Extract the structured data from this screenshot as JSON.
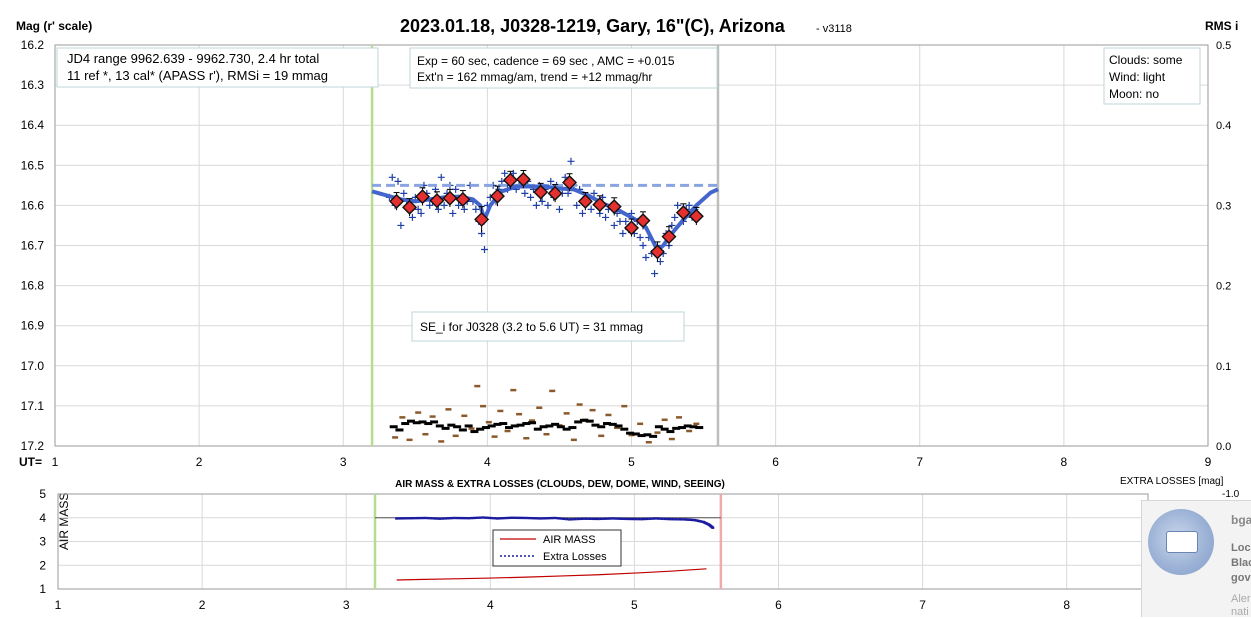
{
  "chart_data": [
    {
      "type": "scatter",
      "title": "2023.01.18, J0328-1219, Gary, 16\"(C), Arizona",
      "version": "- v3118",
      "ylabel_left": "Mag (r' scale)",
      "ylabel_right": "RMS i",
      "xaxis_label": "UT=",
      "xlim": [
        1,
        9
      ],
      "ylim": [
        16.2,
        17.2
      ],
      "ylim_right": [
        0.0,
        0.5
      ],
      "y_inverted": true,
      "grid": true,
      "x_ticks": [
        "1",
        "2",
        "3",
        "4",
        "5",
        "6",
        "7",
        "8",
        "9"
      ],
      "y_ticks": [
        "16.2",
        "16.3",
        "16.4",
        "16.5",
        "16.6",
        "16.7",
        "16.8",
        "16.9",
        "17.0",
        "17.1",
        "17.2"
      ],
      "y_ticks_right": [
        "0.5",
        "0.4",
        "0.3",
        "0.2",
        "0.1",
        "0.0"
      ],
      "markers": {
        "green_line": 3.2,
        "gray_line": 5.6
      },
      "annotations": {
        "jd_box": [
          "JD4 range 9962.639 - 9962.730, 2.4 hr total",
          "11 ref *, 13 cal*  (APASS r'), RMSi = 19 mmag"
        ],
        "exp_box": [
          "Exp = 60 sec, cadence = 69 sec , AMC = +0.015",
          "Ext'n = 162 mmag/am, trend = +12 mmag/hr"
        ],
        "weather_box": [
          "Clouds: some",
          "Wind:  light",
          "Moon: no"
        ],
        "se_box": "SE_i for J0328 (3.2 to 5.6 UT) = 31 mmag"
      },
      "series": [
        {
          "kind": "binned",
          "x": [
            3.37,
            3.46,
            3.55,
            3.65,
            3.74,
            3.83,
            3.96,
            4.07,
            4.16,
            4.25,
            4.37,
            4.47,
            4.57,
            4.68,
            4.78,
            4.88,
            5.0,
            5.08,
            5.18,
            5.26,
            5.36,
            5.45
          ],
          "y": [
            16.59,
            16.605,
            16.578,
            16.588,
            16.582,
            16.585,
            16.635,
            16.577,
            16.537,
            16.535,
            16.567,
            16.57,
            16.543,
            16.59,
            16.598,
            16.603,
            16.656,
            16.638,
            16.716,
            16.678,
            16.618,
            16.627
          ],
          "err": [
            0.012,
            0.012,
            0.012,
            0.012,
            0.012,
            0.012,
            0.022,
            0.015,
            0.012,
            0.012,
            0.012,
            0.012,
            0.012,
            0.012,
            0.012,
            0.012,
            0.012,
            0.012,
            0.015,
            0.015,
            0.012,
            0.012
          ],
          "color": "#e53030"
        },
        {
          "kind": "raw",
          "x": [
            3.32,
            3.34,
            3.36,
            3.38,
            3.4,
            3.42,
            3.44,
            3.46,
            3.48,
            3.5,
            3.52,
            3.54,
            3.56,
            3.58,
            3.6,
            3.62,
            3.64,
            3.66,
            3.68,
            3.7,
            3.72,
            3.74,
            3.76,
            3.78,
            3.8,
            3.82,
            3.84,
            3.86,
            3.88,
            3.9,
            3.92,
            3.94,
            3.96,
            3.98,
            4.0,
            4.02,
            4.04,
            4.06,
            4.08,
            4.1,
            4.12,
            4.14,
            4.16,
            4.18,
            4.2,
            4.22,
            4.24,
            4.26,
            4.28,
            4.3,
            4.32,
            4.34,
            4.36,
            4.38,
            4.4,
            4.42,
            4.44,
            4.46,
            4.48,
            4.5,
            4.52,
            4.54,
            4.56,
            4.58,
            4.6,
            4.62,
            4.64,
            4.66,
            4.68,
            4.7,
            4.72,
            4.74,
            4.76,
            4.78,
            4.8,
            4.82,
            4.84,
            4.86,
            4.88,
            4.9,
            4.92,
            4.94,
            4.96,
            4.98,
            5.0,
            5.02,
            5.04,
            5.06,
            5.08,
            5.1,
            5.12,
            5.14,
            5.16,
            5.18,
            5.2,
            5.22,
            5.24,
            5.26,
            5.28,
            5.3,
            5.32,
            5.34,
            5.36,
            5.38,
            5.4,
            5.42,
            5.44,
            5.46
          ],
          "y": [
            16.58,
            16.53,
            16.6,
            16.54,
            16.65,
            16.57,
            16.59,
            16.61,
            16.63,
            16.58,
            16.61,
            16.62,
            16.55,
            16.57,
            16.6,
            16.59,
            16.56,
            16.61,
            16.53,
            16.6,
            16.57,
            16.55,
            16.62,
            16.56,
            16.6,
            16.58,
            16.61,
            16.59,
            16.55,
            16.59,
            16.61,
            16.64,
            16.67,
            16.71,
            16.6,
            16.58,
            16.55,
            16.59,
            16.56,
            16.54,
            16.52,
            16.56,
            16.55,
            16.52,
            16.56,
            16.55,
            16.53,
            16.57,
            16.54,
            16.58,
            16.56,
            16.6,
            16.55,
            16.59,
            16.56,
            16.6,
            16.54,
            16.58,
            16.55,
            16.61,
            16.57,
            16.53,
            16.57,
            16.49,
            16.55,
            16.6,
            16.56,
            16.62,
            16.58,
            16.59,
            16.61,
            16.57,
            16.6,
            16.62,
            16.58,
            16.63,
            16.61,
            16.6,
            16.65,
            16.62,
            16.64,
            16.67,
            16.64,
            16.66,
            16.62,
            16.67,
            16.64,
            16.68,
            16.7,
            16.73,
            16.68,
            16.72,
            16.77,
            16.7,
            16.74,
            16.72,
            16.67,
            16.7,
            16.65,
            16.63,
            16.6,
            16.62,
            16.64,
            16.61,
            16.6,
            16.63,
            16.61,
            16.63
          ],
          "color": "#1f3fa8"
        },
        {
          "kind": "fit",
          "x": [
            3.2,
            3.3,
            3.4,
            3.5,
            3.6,
            3.7,
            3.8,
            3.9,
            3.95,
            3.98,
            4.02,
            4.1,
            4.2,
            4.3,
            4.4,
            4.5,
            4.6,
            4.7,
            4.8,
            4.9,
            5.0,
            5.05,
            5.1,
            5.15,
            5.18,
            5.22,
            5.28,
            5.35,
            5.45,
            5.55,
            5.6
          ],
          "y": [
            16.565,
            16.575,
            16.585,
            16.59,
            16.585,
            16.58,
            16.578,
            16.585,
            16.6,
            16.635,
            16.6,
            16.565,
            16.553,
            16.553,
            16.553,
            16.558,
            16.56,
            16.575,
            16.595,
            16.61,
            16.63,
            16.64,
            16.655,
            16.69,
            16.712,
            16.7,
            16.67,
            16.64,
            16.6,
            16.568,
            16.56
          ],
          "color": "#4466cc"
        },
        {
          "kind": "dashed",
          "x": [
            3.2,
            5.6
          ],
          "y": [
            16.55,
            16.55
          ],
          "color": "#8aa4e0"
        },
        {
          "kind": "rms_black",
          "x": [
            3.35,
            3.39,
            3.43,
            3.47,
            3.51,
            3.55,
            3.59,
            3.63,
            3.67,
            3.71,
            3.75,
            3.79,
            3.83,
            3.87,
            3.91,
            3.95,
            3.99,
            4.03,
            4.07,
            4.11,
            4.15,
            4.19,
            4.23,
            4.27,
            4.31,
            4.35,
            4.39,
            4.43,
            4.47,
            4.51,
            4.55,
            4.59,
            4.63,
            4.67,
            4.71,
            4.75,
            4.79,
            4.83,
            4.87,
            4.91,
            4.95,
            4.99,
            5.03,
            5.07,
            5.11,
            5.15,
            5.19,
            5.23,
            5.27,
            5.31,
            5.35,
            5.39,
            5.43,
            5.47
          ],
          "y": [
            0.024,
            0.02,
            0.028,
            0.031,
            0.029,
            0.03,
            0.028,
            0.03,
            0.025,
            0.022,
            0.026,
            0.024,
            0.02,
            0.025,
            0.018,
            0.021,
            0.023,
            0.025,
            0.027,
            0.028,
            0.023,
            0.025,
            0.026,
            0.028,
            0.029,
            0.021,
            0.024,
            0.025,
            0.027,
            0.024,
            0.021,
            0.023,
            0.03,
            0.032,
            0.031,
            0.026,
            0.024,
            0.028,
            0.027,
            0.025,
            0.021,
            0.016,
            0.015,
            0.013,
            0.014,
            0.012,
            0.024,
            0.021,
            0.018,
            0.022,
            0.023,
            0.025,
            0.024,
            0.023
          ],
          "color": "#000000"
        },
        {
          "kind": "rms_brown",
          "x": [
            3.36,
            3.41,
            3.46,
            3.52,
            3.57,
            3.62,
            3.68,
            3.73,
            3.78,
            3.84,
            3.89,
            3.93,
            3.97,
            4.01,
            4.05,
            4.09,
            4.14,
            4.18,
            4.22,
            4.27,
            4.31,
            4.36,
            4.41,
            4.45,
            4.5,
            4.55,
            4.6,
            4.64,
            4.68,
            4.73,
            4.79,
            4.84,
            4.9,
            4.95,
            5.0,
            5.06,
            5.12,
            5.18,
            5.23,
            5.28,
            5.33,
            5.4,
            5.45
          ],
          "y": [
            0.011,
            0.036,
            0.008,
            0.042,
            0.015,
            0.037,
            0.006,
            0.046,
            0.013,
            0.038,
            0.022,
            0.075,
            0.05,
            0.03,
            0.012,
            0.044,
            0.019,
            0.07,
            0.04,
            0.01,
            0.032,
            0.048,
            0.015,
            0.069,
            0.026,
            0.041,
            0.008,
            0.052,
            0.033,
            0.045,
            0.013,
            0.039,
            0.023,
            0.05,
            0.014,
            0.028,
            0.005,
            0.017,
            0.033,
            0.009,
            0.036,
            0.019,
            0.028
          ],
          "color": "#8b5a2b"
        }
      ]
    },
    {
      "type": "line",
      "title": "AIR MASS & EXTRA LOSSES (CLOUDS, DEW, DOME, WIND, SEEING)",
      "ylabel": "AIR MASS",
      "ylabel_right": "EXTRA LOSSES [mag]",
      "right_top_tick": "-1.0",
      "xlim": [
        1,
        9
      ],
      "ylim": [
        1,
        5
      ],
      "y_ticks": [
        "1",
        "2",
        "3",
        "4",
        "5"
      ],
      "x_ticks": [
        "1",
        "2",
        "3",
        "4",
        "5",
        "6",
        "7",
        "8"
      ],
      "legend": [
        "AIR MASS",
        "Extra Losses"
      ],
      "markers": {
        "green_line": 3.2,
        "pink_line": 5.6
      },
      "series": [
        {
          "name": "AIR MASS",
          "x": [
            3.35,
            3.5,
            3.75,
            4.0,
            4.25,
            4.5,
            4.75,
            5.0,
            5.25,
            5.5
          ],
          "y": [
            1.38,
            1.4,
            1.43,
            1.46,
            1.5,
            1.55,
            1.6,
            1.67,
            1.75,
            1.85
          ],
          "color": "#c00000"
        },
        {
          "name": "Extra Losses",
          "x": [
            3.35,
            3.45,
            3.55,
            3.65,
            3.75,
            3.85,
            3.95,
            4.05,
            4.15,
            4.25,
            4.35,
            4.45,
            4.55,
            4.65,
            4.75,
            4.85,
            4.95,
            5.05,
            5.15,
            5.25,
            5.35,
            5.42,
            5.48,
            5.52,
            5.55
          ],
          "y": [
            3.97,
            3.98,
            3.99,
            3.96,
            3.99,
            3.98,
            4.01,
            3.97,
            4.0,
            3.99,
            3.97,
            3.99,
            3.93,
            3.96,
            3.95,
            3.97,
            3.95,
            3.94,
            3.97,
            3.94,
            3.93,
            3.9,
            3.82,
            3.7,
            3.55
          ],
          "color": "#1a1aa0"
        }
      ]
    }
  ],
  "notification": {
    "title": "bga",
    "lines": [
      "Loca",
      "Blac",
      "gove"
    ],
    "faded": [
      "Aler",
      "nati"
    ]
  }
}
